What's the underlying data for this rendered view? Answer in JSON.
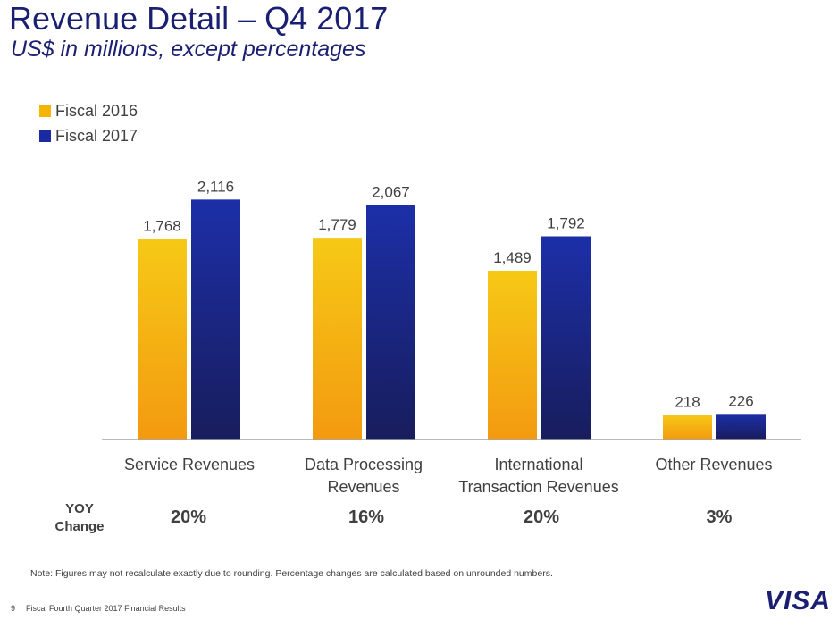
{
  "header": {
    "title": "Revenue Detail – Q4 2017",
    "subtitle": "US$ in millions, except percentages"
  },
  "chart_data": {
    "type": "bar",
    "title": "Revenue Detail – Q4 2017",
    "subtitle": "US$ in millions, except percentages",
    "categories": [
      "Service Revenues",
      "Data Processing Revenues",
      "International Transaction Revenues",
      "Other Revenues"
    ],
    "series": [
      {
        "name": "Fiscal 2016",
        "color": "#f5b400",
        "values": [
          1768,
          1779,
          1489,
          218
        ],
        "labels": [
          "1,768",
          "1,779",
          "1,489",
          "218"
        ]
      },
      {
        "name": "Fiscal 2017",
        "color": "#1a2aa0",
        "values": [
          2116,
          2067,
          1792,
          226
        ],
        "labels": [
          "2,116",
          "2,067",
          "1,792",
          "226"
        ]
      }
    ],
    "ylim": [
      0,
      2300
    ],
    "legend_position": "top-left",
    "grid": false,
    "yoy_title_line1": "YOY",
    "yoy_title_line2": "Change",
    "yoy_change": [
      "20%",
      "16%",
      "20%",
      "3%"
    ]
  },
  "categories_display": [
    {
      "line1": "Service Revenues",
      "line2": ""
    },
    {
      "line1": "Data Processing",
      "line2": "Revenues"
    },
    {
      "line1": "International",
      "line2": "Transaction Revenues"
    },
    {
      "line1": "Other Revenues",
      "line2": ""
    }
  ],
  "footer": {
    "note": "Note: Figures may not recalculate exactly due to rounding. Percentage changes are calculated based on unrounded numbers.",
    "page_number": "9",
    "doc_title": "Fiscal Fourth Quarter 2017 Financial Results",
    "logo_text": "VISA"
  }
}
